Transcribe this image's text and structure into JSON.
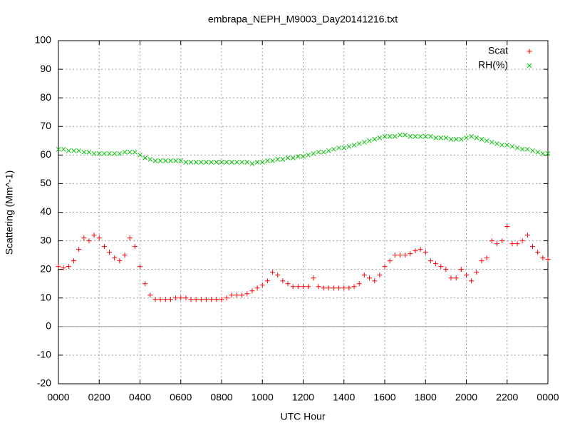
{
  "chart_data": {
    "type": "scatter",
    "title": "embrapa_NEPH_M9003_Day20141216.txt",
    "x_label": "UTC Hour",
    "y_label": "Scattering (Mm^-1)",
    "xlim": [
      0,
      24
    ],
    "ylim": [
      -20,
      100
    ],
    "xticks": [
      {
        "value": 0,
        "label": "0000"
      },
      {
        "value": 2,
        "label": "0200"
      },
      {
        "value": 4,
        "label": "0400"
      },
      {
        "value": 6,
        "label": "0600"
      },
      {
        "value": 8,
        "label": "0800"
      },
      {
        "value": 10,
        "label": "1000"
      },
      {
        "value": 12,
        "label": "1200"
      },
      {
        "value": 14,
        "label": "1400"
      },
      {
        "value": 16,
        "label": "1600"
      },
      {
        "value": 18,
        "label": "1800"
      },
      {
        "value": 20,
        "label": "2000"
      },
      {
        "value": 22,
        "label": "2200"
      },
      {
        "value": 24,
        "label": "0000"
      }
    ],
    "yticks": [
      -20,
      -10,
      0,
      10,
      20,
      30,
      40,
      50,
      60,
      70,
      80,
      90,
      100
    ],
    "grid": true,
    "legend": "top-right",
    "x": [
      0,
      0.25,
      0.5,
      0.75,
      1,
      1.25,
      1.5,
      1.75,
      2,
      2.25,
      2.5,
      2.75,
      3,
      3.25,
      3.5,
      3.75,
      4,
      4.25,
      4.5,
      4.75,
      5,
      5.25,
      5.5,
      5.75,
      6,
      6.25,
      6.5,
      6.75,
      7,
      7.25,
      7.5,
      7.75,
      8,
      8.25,
      8.5,
      8.75,
      9,
      9.25,
      9.5,
      9.75,
      10,
      10.25,
      10.5,
      10.75,
      11,
      11.25,
      11.5,
      11.75,
      12,
      12.25,
      12.5,
      12.75,
      13,
      13.25,
      13.5,
      13.75,
      14,
      14.25,
      14.5,
      14.75,
      15,
      15.25,
      15.5,
      15.75,
      16,
      16.25,
      16.5,
      16.75,
      17,
      17.25,
      17.5,
      17.75,
      18,
      18.25,
      18.5,
      18.75,
      19,
      19.25,
      19.5,
      19.75,
      20,
      20.25,
      20.5,
      20.75,
      21,
      21.25,
      21.5,
      21.75,
      22,
      22.25,
      22.5,
      22.75,
      23,
      23.25,
      23.5,
      23.75,
      24
    ],
    "series": [
      {
        "name": "Scat",
        "color": "#ff0000",
        "marker": "plus",
        "values": [
          21,
          20.5,
          21,
          23,
          27,
          31,
          30,
          32,
          31,
          28,
          26,
          24,
          23,
          25,
          31,
          28,
          21,
          15,
          11,
          9.5,
          9.5,
          9.5,
          9.5,
          10,
          10,
          10,
          9.5,
          9.5,
          9.5,
          9.5,
          9.5,
          9.5,
          9.5,
          10,
          11,
          11,
          11,
          11.5,
          12.5,
          13.5,
          14.5,
          16,
          19,
          18,
          16,
          15,
          14,
          14,
          14,
          14,
          17,
          14,
          13.5,
          13.5,
          13.5,
          13.5,
          13.5,
          13.5,
          14,
          15,
          18,
          17,
          16,
          18,
          21,
          23,
          25,
          25,
          25,
          25.5,
          26.5,
          27,
          26,
          23,
          22,
          21,
          20,
          17,
          17,
          20,
          18,
          16,
          19,
          23,
          24,
          30,
          29,
          30,
          35,
          29,
          29,
          30,
          32,
          28,
          26,
          24,
          23.5
        ]
      },
      {
        "name": "RH(%)",
        "color": "#00c000",
        "marker": "cross",
        "values": [
          62,
          62,
          61.5,
          61.5,
          61.5,
          61,
          61,
          60.5,
          60.5,
          60.5,
          60.5,
          60.5,
          60.5,
          61,
          61,
          61,
          60,
          59,
          58.5,
          58,
          58,
          58,
          58,
          58,
          58,
          57.5,
          57.5,
          57.5,
          57.5,
          57.5,
          57.5,
          57.5,
          57.5,
          57.5,
          57.5,
          57.5,
          57.5,
          57.5,
          57,
          57.5,
          57.5,
          58,
          58,
          58.5,
          58.5,
          59,
          59,
          59.5,
          59.5,
          60,
          60.5,
          61,
          61,
          61.5,
          62,
          62.5,
          62.5,
          63,
          63.5,
          64,
          64.5,
          65,
          65.5,
          66,
          66.5,
          66.5,
          66.5,
          67,
          67,
          66.5,
          66.5,
          66.5,
          66.5,
          66.5,
          66,
          66,
          66,
          65.5,
          65.5,
          65.5,
          66,
          66.5,
          66,
          65.5,
          65,
          64.5,
          64,
          63.5,
          63.5,
          63,
          62.5,
          62,
          62,
          61.5,
          61,
          60.5,
          60.5
        ]
      }
    ]
  }
}
